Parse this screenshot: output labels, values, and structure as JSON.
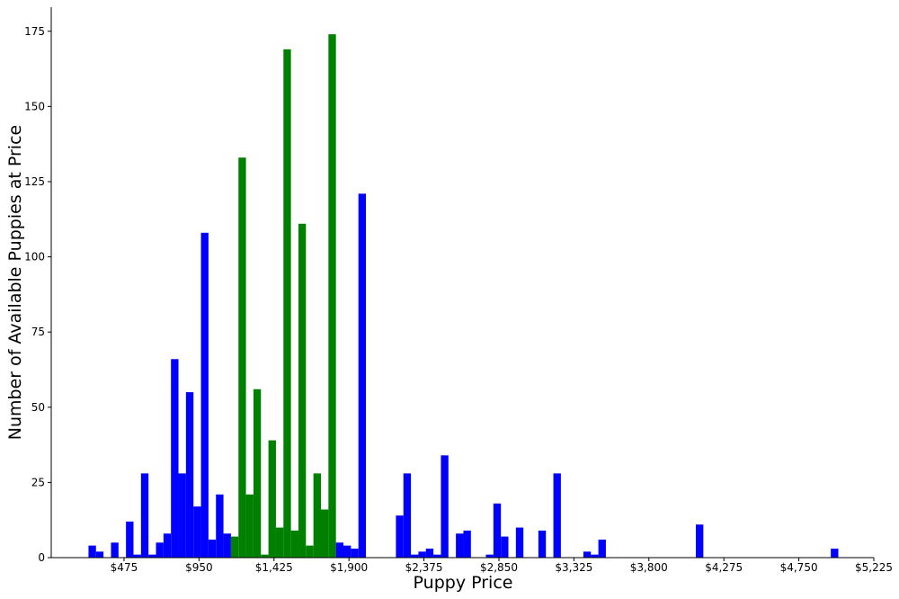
{
  "chart_data": {
    "type": "histogram",
    "xlabel": "Puppy Price",
    "ylabel": "Number of Available Puppies at Price",
    "bins": [
      250,
      297.5,
      345,
      392.5,
      440,
      487.5,
      535,
      582.5,
      630,
      677.5,
      725,
      772.5,
      820,
      867.5,
      915,
      962.5,
      1010,
      1057.5,
      1105,
      1152.5,
      1200,
      1247.5,
      1295,
      1342.5,
      1390,
      1437.5,
      1485,
      1532.5,
      1580,
      1627.5,
      1675,
      1722.5,
      1770,
      1817.5,
      1865,
      1912.5,
      1960,
      2007.5,
      2055,
      2102.5,
      2150,
      2197.5,
      2245,
      2292.5,
      2340,
      2387.5,
      2435,
      2482.5,
      2530,
      2577.5,
      2625,
      2672.5,
      2720,
      2767.5,
      2815,
      2862.5,
      2910,
      2957.5,
      3005,
      3052.5,
      3100,
      3147.5,
      3195,
      3242.5,
      3290,
      3337.5,
      3385,
      3432.5,
      3480,
      3527.5,
      3575,
      3622.5,
      3670,
      3717.5,
      3765,
      3812.5,
      3860,
      3907.5,
      3955,
      4002.5,
      4050,
      4097.5,
      4145,
      4192.5,
      4240,
      4287.5,
      4335,
      4382.5,
      4430,
      4477.5,
      4525,
      4572.5,
      4620,
      4667.5,
      4715,
      4762.5,
      4810,
      4857.5,
      4905,
      4952.5,
      5000
    ],
    "values": [
      4,
      2,
      0,
      5,
      0,
      12,
      1,
      28,
      1,
      5,
      8,
      66,
      28,
      55,
      17,
      108,
      6,
      21,
      8,
      7,
      133,
      21,
      56,
      1,
      39,
      10,
      169,
      9,
      111,
      4,
      28,
      16,
      174,
      5,
      4,
      3,
      121,
      0,
      0,
      0,
      0,
      14,
      28,
      1,
      2,
      3,
      1,
      34,
      0,
      8,
      9,
      0,
      0,
      1,
      18,
      7,
      0,
      10,
      0,
      0,
      9,
      0,
      28,
      0,
      0,
      0,
      2,
      1,
      6,
      0,
      0,
      0,
      0,
      0,
      0,
      0,
      0,
      0,
      0,
      0,
      0,
      11,
      0,
      0,
      0,
      0,
      0,
      0,
      0,
      0,
      0,
      0,
      0,
      0,
      0,
      0,
      0,
      0,
      0,
      3
    ],
    "colors": [
      "#0000ff",
      "#0000ff",
      "#0000ff",
      "#0000ff",
      "#0000ff",
      "#0000ff",
      "#0000ff",
      "#0000ff",
      "#0000ff",
      "#0000ff",
      "#0000ff",
      "#0000ff",
      "#0000ff",
      "#0000ff",
      "#0000ff",
      "#0000ff",
      "#0000ff",
      "#0000ff",
      "#0000ff",
      "#008000",
      "#008000",
      "#008000",
      "#008000",
      "#008000",
      "#008000",
      "#008000",
      "#008000",
      "#008000",
      "#008000",
      "#008000",
      "#008000",
      "#008000",
      "#008000",
      "#0000ff",
      "#0000ff",
      "#0000ff",
      "#0000ff",
      "#0000ff",
      "#0000ff",
      "#0000ff",
      "#0000ff",
      "#0000ff",
      "#0000ff",
      "#0000ff",
      "#0000ff",
      "#0000ff",
      "#0000ff",
      "#0000ff",
      "#0000ff",
      "#0000ff",
      "#0000ff",
      "#0000ff",
      "#0000ff",
      "#0000ff",
      "#0000ff",
      "#0000ff",
      "#0000ff",
      "#0000ff",
      "#0000ff",
      "#0000ff",
      "#0000ff",
      "#0000ff",
      "#0000ff",
      "#0000ff",
      "#0000ff",
      "#0000ff",
      "#0000ff",
      "#0000ff",
      "#0000ff",
      "#0000ff",
      "#0000ff",
      "#0000ff",
      "#0000ff",
      "#0000ff",
      "#0000ff",
      "#0000ff",
      "#0000ff",
      "#0000ff",
      "#0000ff",
      "#0000ff",
      "#0000ff",
      "#0000ff",
      "#0000ff",
      "#0000ff",
      "#0000ff",
      "#0000ff",
      "#0000ff",
      "#0000ff",
      "#0000ff",
      "#0000ff",
      "#0000ff",
      "#0000ff",
      "#0000ff",
      "#0000ff",
      "#0000ff",
      "#0000ff",
      "#0000ff",
      "#0000ff",
      "#0000ff",
      "#0000ff"
    ],
    "xlim": [
      14,
      5225
    ],
    "ylim": [
      0,
      183
    ],
    "xticks": [
      {
        "value": 475,
        "label": "$475"
      },
      {
        "value": 950,
        "label": "$950"
      },
      {
        "value": 1425,
        "label": "$1,425"
      },
      {
        "value": 1900,
        "label": "$1,900"
      },
      {
        "value": 2375,
        "label": "$2,375"
      },
      {
        "value": 2850,
        "label": "$2,850"
      },
      {
        "value": 3325,
        "label": "$3,325"
      },
      {
        "value": 3800,
        "label": "$3,800"
      },
      {
        "value": 4275,
        "label": "$4,275"
      },
      {
        "value": 4750,
        "label": "$4,750"
      },
      {
        "value": 5225,
        "label": "$5,225"
      }
    ],
    "yticks": [
      0,
      25,
      50,
      75,
      100,
      125,
      150,
      175
    ],
    "grid": false
  }
}
